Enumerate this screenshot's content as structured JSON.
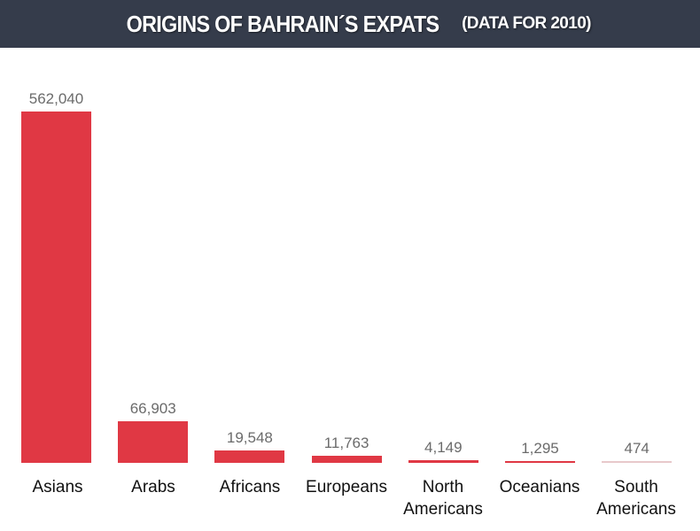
{
  "header": {
    "title": "ORIGINS OF BAHRAIN´S EXPATS",
    "subtitle": "(DATA FOR  2010)"
  },
  "colors": {
    "header_bg": "#353c4b",
    "bar": "#e03844",
    "value_text": "#6b6b6b"
  },
  "chart_data": {
    "type": "bar",
    "title": "ORIGINS OF BAHRAIN´S EXPATS (DATA FOR 2010)",
    "xlabel": "",
    "ylabel": "",
    "categories": [
      "Asians",
      "Arabs",
      "Africans",
      "Europeans",
      "North Americans",
      "Oceanians",
      "South Americans"
    ],
    "values": [
      562040,
      66903,
      19548,
      11763,
      4149,
      1295,
      474
    ],
    "value_labels": [
      "562,040",
      "66,903",
      "19,548",
      "11,763",
      "4,149",
      "1,295",
      "474"
    ],
    "ylim": [
      0,
      562040
    ],
    "grid": false,
    "legend": null
  },
  "labels": {
    "cat0": "Asians",
    "cat1": "Arabs",
    "cat2": "Africans",
    "cat3": "Europeans",
    "cat4a": "North",
    "cat4b": "Americans",
    "cat5": "Oceanians",
    "cat6a": "South",
    "cat6b": "Americans"
  }
}
